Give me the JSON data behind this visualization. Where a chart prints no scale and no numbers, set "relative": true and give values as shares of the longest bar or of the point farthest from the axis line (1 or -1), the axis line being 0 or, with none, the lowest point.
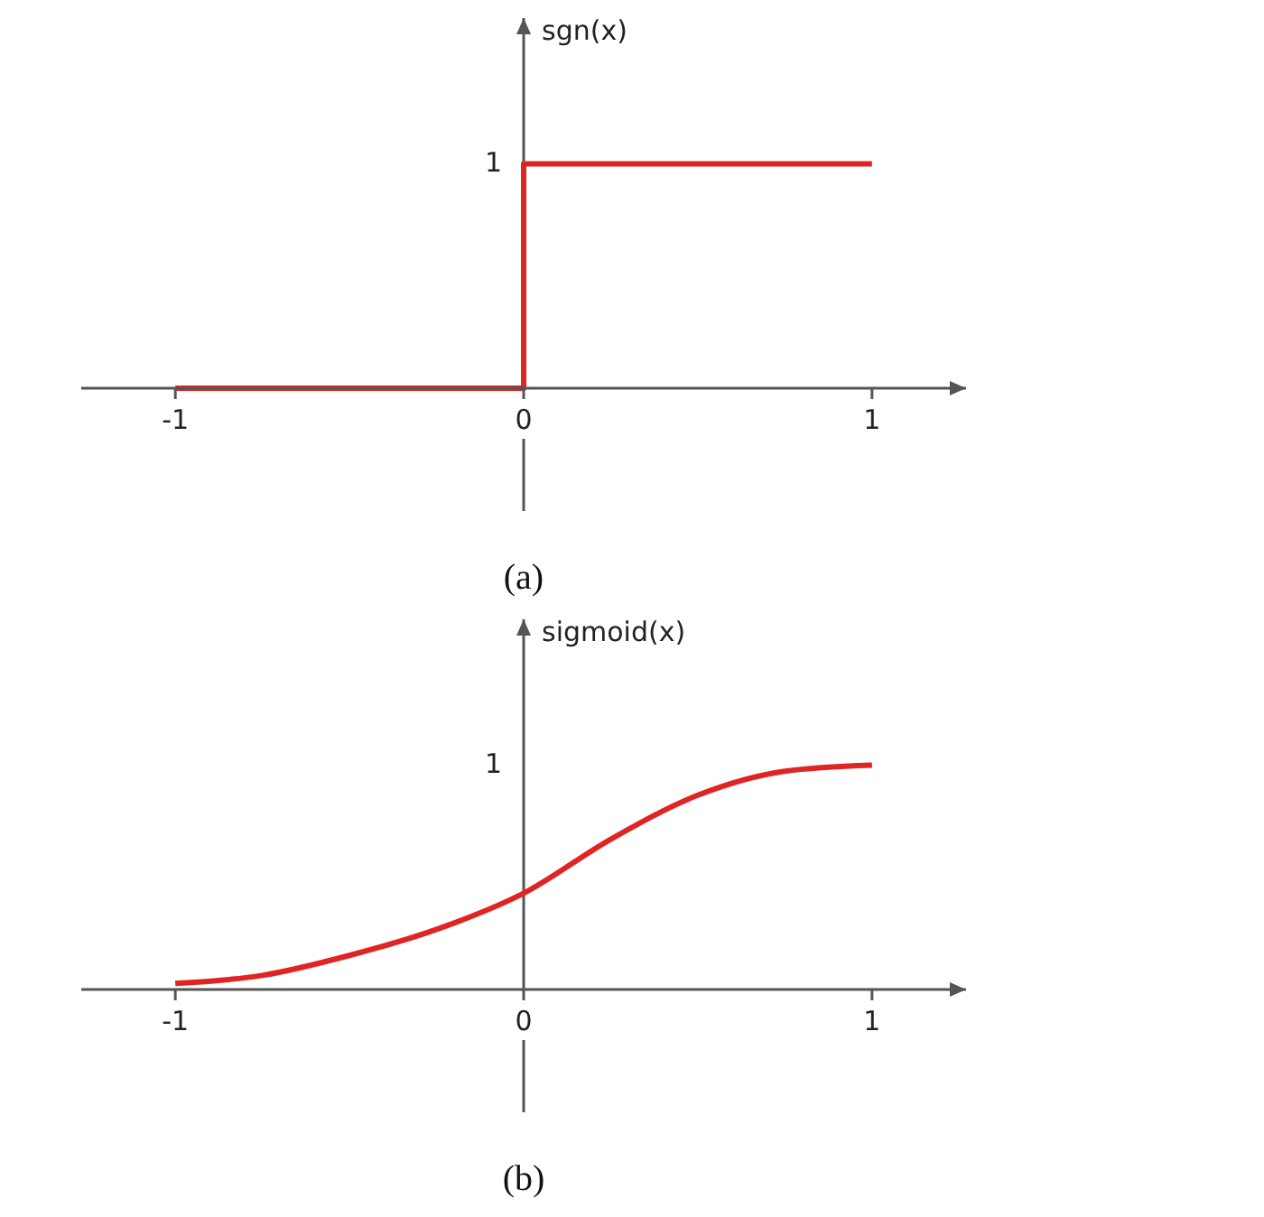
{
  "chart_data": [
    {
      "type": "step",
      "title": "(a)",
      "ylabel": "sgn(x)",
      "relative": true,
      "x": [
        -1,
        0,
        1
      ],
      "values": [
        0,
        1,
        1
      ],
      "color": "#e02424",
      "marker": "none",
      "xlim": [
        -1.27,
        1.27
      ],
      "xticks": [
        -1,
        0,
        1
      ],
      "annotations": [
        "1"
      ]
    },
    {
      "type": "line",
      "title": "(b)",
      "ylabel": "sigmoid(x)",
      "relative": true,
      "x": [
        -1,
        -0.75,
        -0.5,
        -0.25,
        0,
        0.25,
        0.5,
        0.75,
        1
      ],
      "values": [
        0.027,
        0.063,
        0.152,
        0.268,
        0.429,
        0.67,
        0.866,
        0.973,
        1
      ],
      "color": "#e02424",
      "marker": "none",
      "xlim": [
        -1.27,
        1.27
      ],
      "xticks": [
        -1,
        0,
        1
      ],
      "annotations": [
        "1"
      ]
    }
  ]
}
